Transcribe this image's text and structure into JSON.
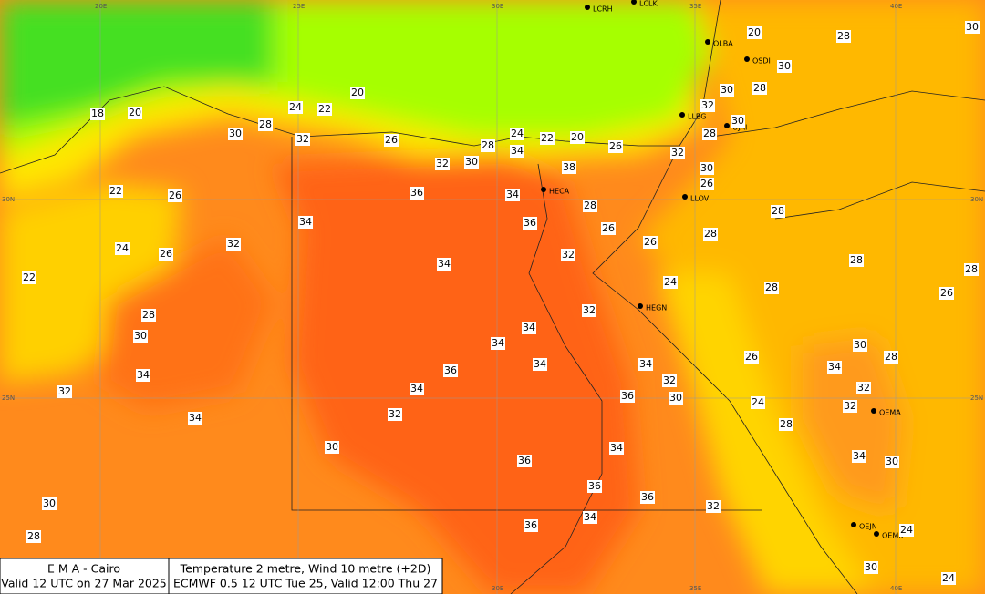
{
  "footer": {
    "left": [
      "E M A  -  Cairo",
      "Valid 12 UTC on 27 Mar 2025"
    ],
    "right": [
      "Temperature  2 metre, Wind  10 metre (+2D)",
      "ECMWF 0.5 12 UTC Tue 25, Valid 12:00 Thu 27"
    ]
  },
  "grid_labels": [
    "20E",
    "25E",
    "30E",
    "35E",
    "40E",
    "30N",
    "30N",
    "25N",
    "25N",
    "30E",
    "35E",
    "40E"
  ],
  "stations": [
    "LCRH",
    "LCLK",
    "OLBA",
    "OSDI",
    "LLBG",
    "OJAI",
    "HECA",
    "LLOV",
    "HEGN",
    "OEMA",
    "OEJN",
    "OEMK"
  ],
  "contour_labels": [
    20,
    28,
    30,
    30,
    28,
    30,
    20,
    18,
    20,
    24,
    22,
    28,
    30,
    32,
    26,
    24,
    22,
    20,
    26,
    28,
    34,
    32,
    32,
    30,
    28,
    32,
    30,
    38,
    30,
    26,
    22,
    26,
    36,
    34,
    28,
    36,
    34,
    26,
    28,
    28,
    26,
    32,
    24,
    26,
    32,
    28,
    28,
    34,
    22,
    24,
    28,
    26,
    32,
    28,
    30,
    34,
    34,
    30,
    28,
    26,
    34,
    34,
    36,
    34,
    34,
    32,
    32,
    32,
    34,
    36,
    30,
    24,
    32,
    32,
    34,
    28,
    30,
    34,
    34,
    30,
    36,
    36,
    36,
    32,
    30,
    34,
    36,
    28,
    24,
    30,
    24
  ]
}
